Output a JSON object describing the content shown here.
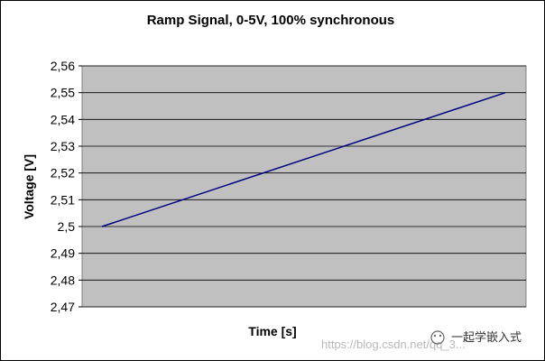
{
  "chart_data": {
    "type": "line",
    "title": "Ramp Signal, 0-5V, 100% synchronous",
    "xlabel": "Time [s]",
    "ylabel": "Voltage [V]",
    "ylim": [
      2.47,
      2.56
    ],
    "y_ticks": [
      "2,47",
      "2,48",
      "2,49",
      "2,5",
      "2,51",
      "2,52",
      "2,53",
      "2,54",
      "2,55",
      "2,56"
    ],
    "grid": true,
    "legend": "none",
    "series": [
      {
        "x": [
          0,
          1
        ],
        "values": [
          2.5,
          2.55
        ],
        "color": "#000080"
      }
    ],
    "plot_background": "#c0c0c0"
  },
  "watermark": {
    "brand": "一起学嵌入式",
    "url": "https://blog.csdn.net/qq_3..."
  }
}
